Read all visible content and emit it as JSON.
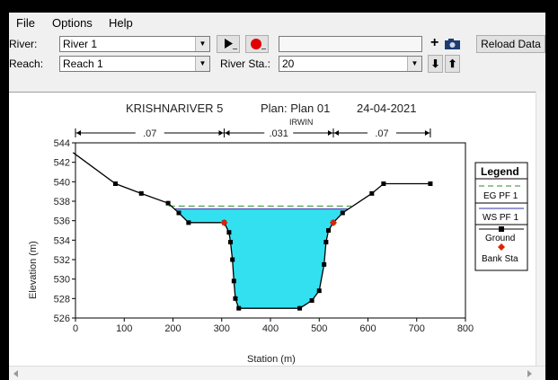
{
  "menu": {
    "file": "File",
    "options": "Options",
    "help": "Help"
  },
  "toolbar": {
    "river_label": "River:",
    "river_value": "River 1",
    "reach_label": "Reach:",
    "reach_value": "Reach 1",
    "river_sta_label": "River Sta.:",
    "river_sta_value": "20",
    "reload_button": "Reload Data",
    "plus_glyph": "+",
    "down_glyph": "⬇",
    "up_glyph": "⬆"
  },
  "plot_header": {
    "project": "KRISHNARIVER 5",
    "plan": "Plan: Plan 01",
    "date": "24-04-2021",
    "subtitle": "IRWIN"
  },
  "manning": [
    ".07",
    ".031",
    ".07"
  ],
  "legend": {
    "title": "Legend",
    "eg": "EG PF 1",
    "ws": "WS PF 1",
    "ground": "Ground",
    "bank": "Bank Sta"
  },
  "colors": {
    "eg": "#2e8b2e",
    "ws": "#3333aa",
    "water": "#33e0f0",
    "ground": "#000000",
    "bank": "#dd2200"
  },
  "chart_data": {
    "type": "line",
    "xlabel": "Station (m)",
    "ylabel": "Elevation (m)",
    "xlim": [
      0,
      800
    ],
    "ylim": [
      526,
      544
    ],
    "xticks": [
      0,
      100,
      200,
      300,
      400,
      500,
      600,
      700,
      800
    ],
    "yticks": [
      526,
      528,
      530,
      532,
      534,
      536,
      538,
      540,
      542,
      544
    ],
    "ground": [
      [
        -5,
        543
      ],
      [
        82,
        539.8
      ],
      [
        135,
        538.8
      ],
      [
        190,
        537.8
      ],
      [
        212,
        536.8
      ],
      [
        232,
        535.8
      ],
      [
        305,
        535.8
      ],
      [
        315,
        534.8
      ],
      [
        318,
        533.8
      ],
      [
        322,
        532
      ],
      [
        325,
        529.8
      ],
      [
        328,
        528
      ],
      [
        335,
        527
      ],
      [
        460,
        527
      ],
      [
        485,
        527.8
      ],
      [
        500,
        528.8
      ],
      [
        510,
        531.5
      ],
      [
        514,
        533.8
      ],
      [
        519,
        535
      ],
      [
        529,
        535.8
      ],
      [
        548,
        536.8
      ],
      [
        608,
        538.8
      ],
      [
        632,
        539.8
      ],
      [
        728,
        539.8
      ]
    ],
    "bank_stations": [
      [
        305,
        535.8
      ],
      [
        529,
        535.8
      ]
    ],
    "ws_elevation": 537.2,
    "eg_elevation": 537.5,
    "manning_breaks": [
      0,
      305,
      529,
      728
    ]
  }
}
